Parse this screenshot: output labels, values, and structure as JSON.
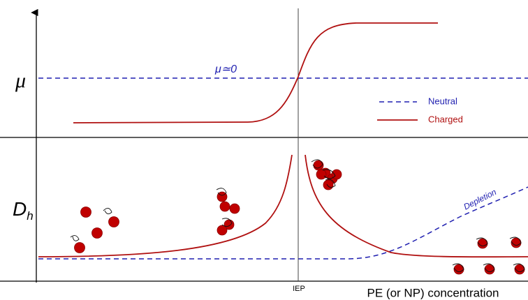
{
  "axes": {
    "top_label": "μ",
    "bottom_label": "D",
    "bottom_label_sub": "h",
    "x_label": "PE (or NP) concentration",
    "iep": "IEP"
  },
  "annotations": {
    "mu_zero": "μ≃0",
    "depletion": "Depletion"
  },
  "legend": [
    {
      "label": "Neutral"
    },
    {
      "label": "Charged"
    }
  ]
}
